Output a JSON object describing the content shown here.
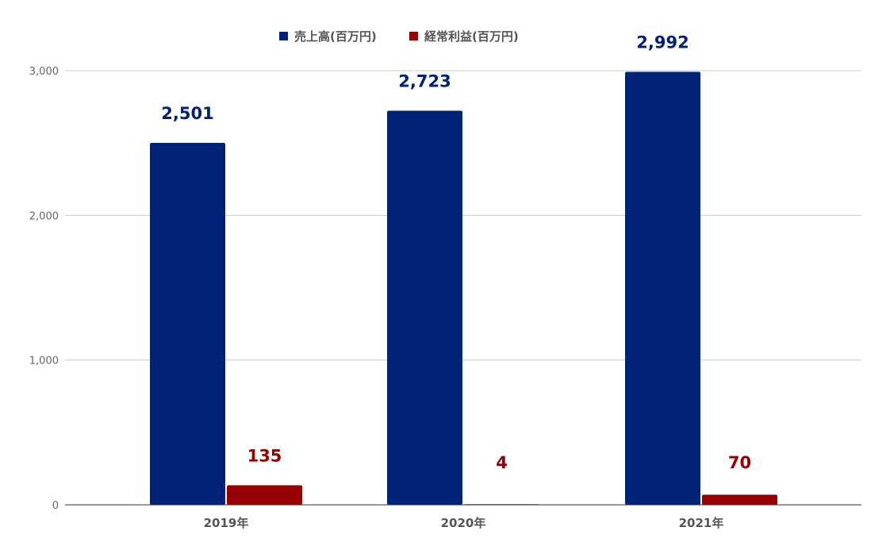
{
  "chart_data": {
    "type": "bar",
    "categories": [
      "2019年",
      "2020年",
      "2021年"
    ],
    "series": [
      {
        "name": "売上高(百万円)",
        "values": [
          2501,
          2723,
          2992
        ],
        "labels": [
          "2,501",
          "2,723",
          "2,992"
        ],
        "color": "#002277"
      },
      {
        "name": "経常利益(百万円)",
        "values": [
          135,
          4,
          70
        ],
        "labels": [
          "135",
          "4",
          "70"
        ],
        "color": "#990000"
      }
    ],
    "ylim": [
      0,
      3000
    ],
    "yticks": [
      0,
      1000,
      2000,
      3000
    ],
    "ytick_labels": [
      "0",
      "1,000",
      "2,000",
      "3,000"
    ],
    "grid": true,
    "legend_position": "top-center",
    "title": "",
    "xlabel": "",
    "ylabel": ""
  }
}
